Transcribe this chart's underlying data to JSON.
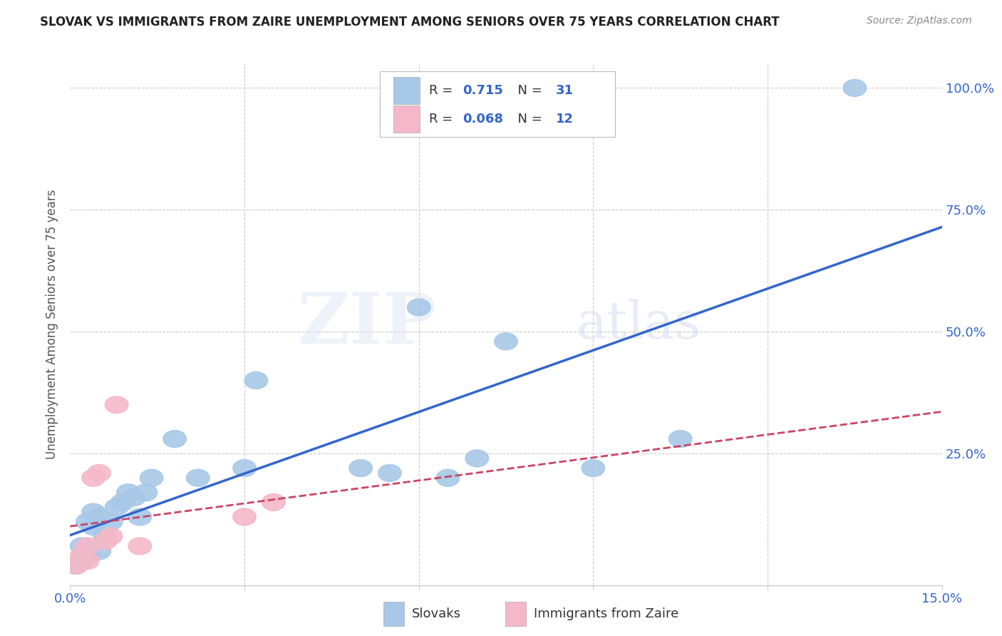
{
  "title": "SLOVAK VS IMMIGRANTS FROM ZAIRE UNEMPLOYMENT AMONG SENIORS OVER 75 YEARS CORRELATION CHART",
  "source": "Source: ZipAtlas.com",
  "ylabel": "Unemployment Among Seniors over 75 years",
  "xlim": [
    0.0,
    0.15
  ],
  "ylim": [
    -0.02,
    1.05
  ],
  "xticks": [
    0.0,
    0.03,
    0.06,
    0.09,
    0.12,
    0.15
  ],
  "xticklabels_left": "0.0%",
  "xticklabels_right": "15.0%",
  "ytick_vals": [
    0.0,
    0.25,
    0.5,
    0.75,
    1.0
  ],
  "ytick_labels": [
    "",
    "25.0%",
    "50.0%",
    "75.0%",
    "100.0%"
  ],
  "background_color": "#ffffff",
  "grid_color": "#cccccc",
  "slovak_color": "#a8c8e8",
  "zaire_color": "#f4b8c8",
  "slovak_line_color": "#3366cc",
  "zaire_line_color": "#cc4466",
  "Slovak_R": 0.715,
  "Slovak_N": 31,
  "Zaire_R": 0.068,
  "Zaire_N": 12,
  "legend_label_1": "Slovaks",
  "legend_label_2": "Immigrants from Zaire",
  "watermark_zip": "ZIP",
  "watermark_atlas": "atlas",
  "slovak_x": [
    0.001,
    0.002,
    0.002,
    0.003,
    0.003,
    0.004,
    0.004,
    0.005,
    0.005,
    0.006,
    0.007,
    0.008,
    0.009,
    0.01,
    0.011,
    0.012,
    0.013,
    0.014,
    0.018,
    0.022,
    0.03,
    0.032,
    0.05,
    0.055,
    0.06,
    0.065,
    0.07,
    0.075,
    0.09,
    0.105,
    0.135
  ],
  "slovak_y": [
    0.02,
    0.03,
    0.06,
    0.04,
    0.11,
    0.1,
    0.13,
    0.12,
    0.05,
    0.08,
    0.11,
    0.14,
    0.15,
    0.17,
    0.16,
    0.12,
    0.17,
    0.2,
    0.28,
    0.2,
    0.22,
    0.4,
    0.22,
    0.21,
    0.55,
    0.2,
    0.24,
    0.48,
    0.22,
    0.28,
    1.0
  ],
  "zaire_x": [
    0.001,
    0.002,
    0.003,
    0.003,
    0.004,
    0.005,
    0.006,
    0.007,
    0.008,
    0.012,
    0.03,
    0.035
  ],
  "zaire_y": [
    0.02,
    0.04,
    0.03,
    0.06,
    0.2,
    0.21,
    0.07,
    0.08,
    0.35,
    0.06,
    0.12,
    0.15
  ]
}
